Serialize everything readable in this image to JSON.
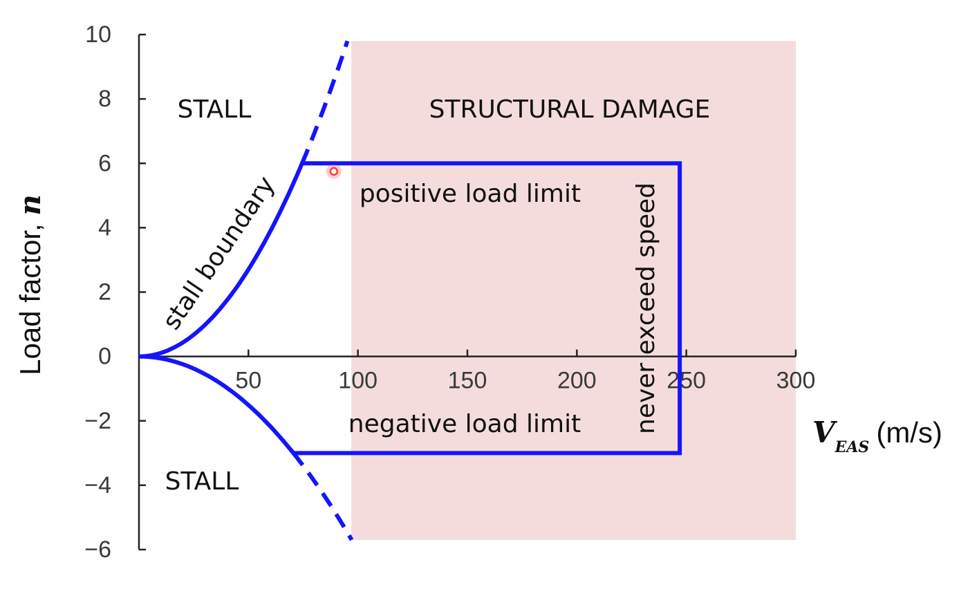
{
  "chart_data": {
    "type": "line",
    "xlabel_unit": "(m/s)",
    "xlabel_symbol": "V",
    "xlabel_subscript": "EAS",
    "ylabel_text": "Load factor,",
    "ylabel_symbol": "n",
    "xlim": [
      0,
      300
    ],
    "ylim": [
      -6,
      10
    ],
    "x_ticks": [
      {
        "value": 50,
        "label": "50"
      },
      {
        "value": 100,
        "label": "100"
      },
      {
        "value": 150,
        "label": "150"
      },
      {
        "value": 200,
        "label": "200"
      },
      {
        "value": 250,
        "label": "250"
      },
      {
        "value": 300,
        "label": "300"
      }
    ],
    "y_ticks": [
      {
        "value": 10,
        "label": "10"
      },
      {
        "value": 8,
        "label": "8"
      },
      {
        "value": 6,
        "label": "6"
      },
      {
        "value": 4,
        "label": "4"
      },
      {
        "value": 2,
        "label": "2"
      },
      {
        "value": 0,
        "label": "0"
      },
      {
        "value": -2,
        "label": "−2"
      },
      {
        "value": -4,
        "label": "−4"
      },
      {
        "value": -6,
        "label": "−6"
      }
    ],
    "envelope": {
      "color": "#1414ff",
      "positive_load_limit": 6,
      "negative_load_limit": -3,
      "never_exceed_speed": 247,
      "positive_stall_speed": 74.5,
      "negative_stall_speed": 70.5,
      "stall_curve_exponent": 2
    },
    "damage_region": {
      "color": "#f3dcdb",
      "x_range": [
        97,
        300
      ],
      "y_range": [
        -5.7,
        9.8
      ]
    },
    "regions": {
      "stall_top": "STALL",
      "stall_bottom": "STALL",
      "damage": "STRUCTURAL DAMAGE"
    },
    "annotations": {
      "stall_boundary": "stall boundary",
      "positive_load_limit": "positive load limit",
      "negative_load_limit": "negative load limit",
      "never_exceed_speed": "never exceed speed"
    },
    "marker": {
      "x": 89,
      "y": 5.75,
      "color": "#ff3b30"
    }
  }
}
